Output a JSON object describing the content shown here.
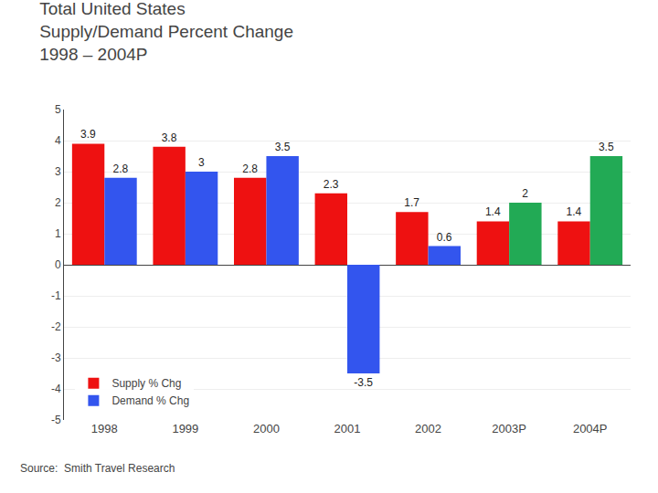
{
  "chart_data": {
    "type": "bar",
    "title": "Total United States\nSupply/Demand Percent Change\n1998 – 2004P",
    "annotations": [
      "Source:  Smith Travel Research"
    ],
    "categories": [
      "1998",
      "1999",
      "2000",
      "2001",
      "2002",
      "2003P",
      "2004P"
    ],
    "series": [
      {
        "name": "Supply % Chg",
        "color": "#EE1111",
        "values": [
          3.9,
          3.8,
          2.8,
          2.3,
          1.7,
          1.4,
          1.4
        ]
      },
      {
        "name": "Demand % Chg",
        "colors": [
          "#3355EE",
          "#3355EE",
          "#3355EE",
          "#3355EE",
          "#3355EE",
          "#22AA55",
          "#22AA55"
        ],
        "values": [
          2.8,
          3.0,
          3.5,
          -3.5,
          0.6,
          2.0,
          3.5
        ]
      }
    ],
    "ylim": [
      -5,
      5
    ],
    "yticks": [
      -5,
      -4,
      -3,
      -2,
      -1,
      0,
      1,
      2,
      3,
      4,
      5
    ],
    "grid": true,
    "legend": "lower left",
    "data_labels": true
  }
}
